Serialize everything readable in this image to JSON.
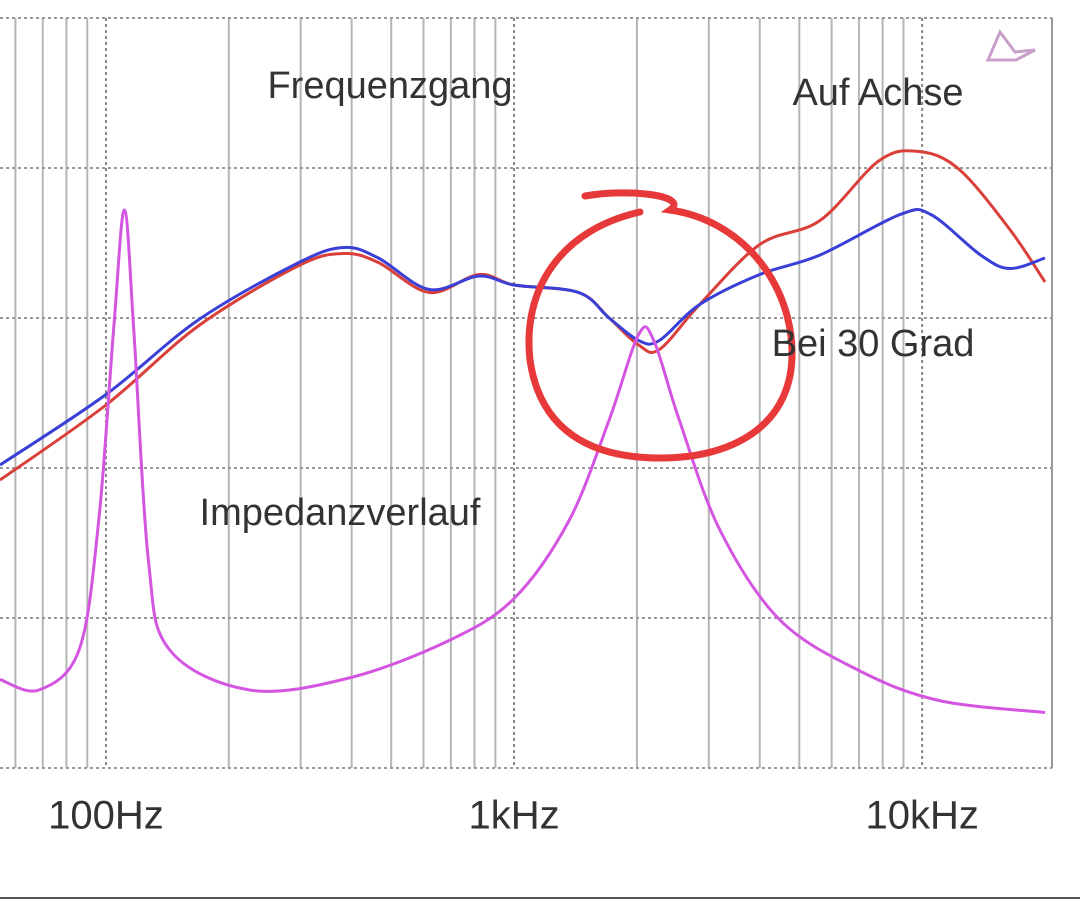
{
  "chart_data": {
    "type": "line",
    "title": "Frequenzgang",
    "annotations": [
      "Impedanzverlauf"
    ],
    "xscale": "log",
    "xlim": [
      55,
      20000
    ],
    "ylim": [
      0,
      5
    ],
    "xticks": [
      {
        "value": 100,
        "label": "100Hz"
      },
      {
        "value": 1000,
        "label": "1kHz"
      },
      {
        "value": 10000,
        "label": "10kHz"
      }
    ],
    "xminor": [
      60,
      70,
      80,
      90,
      200,
      300,
      400,
      500,
      600,
      700,
      800,
      900,
      2000,
      3000,
      4000,
      5000,
      6000,
      7000,
      8000,
      9000
    ],
    "ygrid": [
      0,
      1,
      2,
      3,
      4,
      5
    ],
    "grid": true,
    "series": [
      {
        "name": "Auf Achse",
        "color": "#d9403a",
        "x": [
          55,
          100,
          169,
          297,
          383,
          465,
          620,
          820,
          1000,
          1440,
          1710,
          2020,
          2270,
          2850,
          4000,
          5620,
          7850,
          9840,
          12330,
          16400,
          20000
        ],
        "values": [
          1.92,
          2.42,
          2.95,
          3.35,
          3.43,
          3.37,
          3.17,
          3.29,
          3.22,
          3.17,
          3.0,
          2.82,
          2.79,
          3.09,
          3.49,
          3.65,
          4.05,
          4.11,
          3.99,
          3.59,
          3.24
        ]
      },
      {
        "name": "Bei 30 Grad",
        "color": "#3a3fd6",
        "x": [
          55,
          100,
          169,
          297,
          383,
          465,
          620,
          820,
          1000,
          1440,
          1710,
          2020,
          2270,
          2850,
          4000,
          5620,
          8830,
          10500,
          13900,
          16400,
          20000
        ],
        "values": [
          2.02,
          2.49,
          2.99,
          3.37,
          3.47,
          3.4,
          3.19,
          3.28,
          3.22,
          3.17,
          3.0,
          2.85,
          2.85,
          3.09,
          3.29,
          3.42,
          3.69,
          3.69,
          3.42,
          3.33,
          3.4
        ]
      },
      {
        "name": "Impedanzverlauf",
        "color": "#d455e0",
        "x": [
          55,
          68.5,
          86,
          96,
          104.6,
          111,
          117,
          127,
          143,
          225,
          394,
          693,
          1000,
          1364,
          1710,
          2020,
          2200,
          2540,
          3190,
          4470,
          7000,
          11000,
          20000
        ],
        "values": [
          0.59,
          0.52,
          0.79,
          1.65,
          2.95,
          3.72,
          2.92,
          1.39,
          0.79,
          0.52,
          0.6,
          0.85,
          1.13,
          1.65,
          2.32,
          2.89,
          2.85,
          2.32,
          1.59,
          0.99,
          0.65,
          0.45,
          0.37
        ]
      }
    ]
  }
}
